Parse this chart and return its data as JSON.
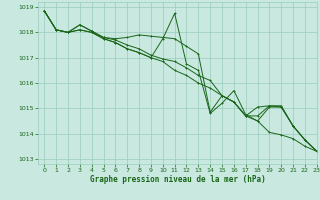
{
  "xlabel": "Graphe pression niveau de la mer (hPa)",
  "xlim": [
    -0.5,
    23
  ],
  "ylim": [
    1012.8,
    1019.2
  ],
  "yticks": [
    1013,
    1014,
    1015,
    1016,
    1017,
    1018,
    1019
  ],
  "xticks": [
    0,
    1,
    2,
    3,
    4,
    5,
    6,
    7,
    8,
    9,
    10,
    11,
    12,
    13,
    14,
    15,
    16,
    17,
    18,
    19,
    20,
    21,
    22,
    23
  ],
  "bg_color": "#c8e8e0",
  "grid_color": "#99ccbb",
  "line_color": "#1a6619",
  "series1": [
    1018.85,
    1018.1,
    1018.0,
    1018.3,
    1018.05,
    1017.8,
    1017.75,
    1017.8,
    1017.9,
    1017.85,
    1017.8,
    1017.75,
    1017.45,
    1017.15,
    1014.85,
    1015.5,
    1015.25,
    1014.7,
    1015.05,
    1015.1,
    1015.05,
    1014.3,
    1013.75,
    1013.3
  ],
  "series2": [
    1018.85,
    1018.1,
    1018.0,
    1018.3,
    1018.05,
    1017.8,
    1017.7,
    1017.5,
    1017.35,
    1017.1,
    1016.95,
    1016.85,
    1016.6,
    1016.3,
    1016.1,
    1015.5,
    1015.25,
    1014.7,
    1014.7,
    1015.1,
    1015.1,
    1014.3,
    1013.75,
    1013.3
  ],
  "series3": [
    1018.85,
    1018.1,
    1018.0,
    1018.1,
    1018.0,
    1017.75,
    1017.6,
    1017.35,
    1017.2,
    1017.0,
    1017.75,
    1018.75,
    1016.75,
    1016.5,
    1014.8,
    1015.2,
    1015.7,
    1014.75,
    1014.5,
    1015.05,
    1015.05,
    1014.3,
    1013.75,
    1013.3
  ],
  "series4": [
    1018.85,
    1018.1,
    1018.0,
    1018.1,
    1018.0,
    1017.75,
    1017.6,
    1017.35,
    1017.2,
    1017.0,
    1016.85,
    1016.5,
    1016.3,
    1016.0,
    1015.8,
    1015.5,
    1015.25,
    1014.7,
    1014.5,
    1014.05,
    1013.95,
    1013.8,
    1013.5,
    1013.3
  ]
}
